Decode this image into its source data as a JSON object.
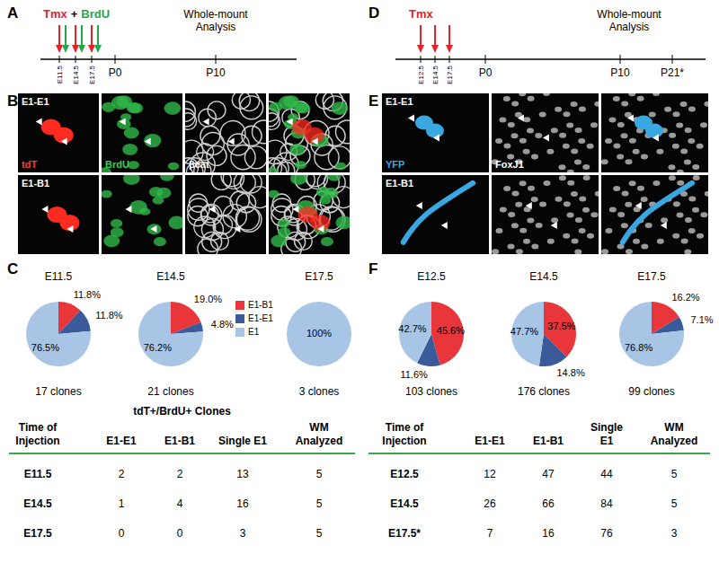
{
  "chart_data": [
    {
      "type": "pie",
      "title": "E11.5",
      "subtitle": "17 clones",
      "categories": [
        "E1-B1",
        "E1-E1",
        "E1"
      ],
      "values": [
        11.8,
        11.8,
        76.5
      ],
      "value_labels": [
        "11.8%",
        "11.8%",
        "76.5%"
      ],
      "colors": [
        "#e8363b",
        "#3b5a9a",
        "#a8c5e6"
      ],
      "data_labels": true
    },
    {
      "type": "pie",
      "title": "E14.5",
      "subtitle": "21 clones",
      "categories": [
        "E1-B1",
        "E1-E1",
        "E1"
      ],
      "values": [
        19.0,
        4.8,
        76.2
      ],
      "value_labels": [
        "19.0%",
        "4.8%",
        "76.2%"
      ],
      "colors": [
        "#e8363b",
        "#3b5a9a",
        "#a8c5e6"
      ],
      "data_labels": true,
      "legend": "right"
    },
    {
      "type": "pie",
      "title": "E17.5",
      "subtitle": "3 clones",
      "categories": [
        "E1"
      ],
      "values": [
        100
      ],
      "value_labels": [
        "100%"
      ],
      "colors": [
        "#a8c5e6"
      ],
      "data_labels": true
    },
    {
      "type": "pie",
      "title": "E12.5",
      "subtitle": "103 clones",
      "categories": [
        "E1-B1",
        "E1-E1",
        "E1"
      ],
      "values": [
        45.6,
        11.6,
        42.7
      ],
      "value_labels": [
        "45.6%",
        "11.6%",
        "42.7%"
      ],
      "colors": [
        "#e8363b",
        "#3b5a9a",
        "#a8c5e6"
      ],
      "data_labels": true
    },
    {
      "type": "pie",
      "title": "E14.5",
      "subtitle": "176 clones",
      "categories": [
        "E1-B1",
        "E1-E1",
        "E1"
      ],
      "values": [
        37.5,
        14.8,
        47.7
      ],
      "value_labels": [
        "37.5%",
        "14.8%",
        "47.7%"
      ],
      "colors": [
        "#e8363b",
        "#3b5a9a",
        "#a8c5e6"
      ],
      "data_labels": true
    },
    {
      "type": "pie",
      "title": "E17.5",
      "subtitle": "99 clones",
      "categories": [
        "E1-B1",
        "E1-E1",
        "E1"
      ],
      "values": [
        16.2,
        7.1,
        76.8
      ],
      "value_labels": [
        "16.2%",
        "7.1%",
        "76.8%"
      ],
      "colors": [
        "#e8363b",
        "#3b5a9a",
        "#a8c5e6"
      ],
      "data_labels": true
    }
  ],
  "figure": {
    "panel_labels": [
      "A",
      "B",
      "C",
      "D",
      "E",
      "F"
    ],
    "timeline_a": {
      "treatments": [
        "Tmx",
        "+",
        "BrdU"
      ],
      "injection_days": [
        "E11.5",
        "E14.5",
        "E17.5"
      ],
      "milestones": [
        "P0",
        "P10"
      ],
      "analysis": [
        "Whole-mount",
        "Analysis"
      ]
    },
    "timeline_d": {
      "treatments": [
        "Tmx"
      ],
      "injection_days": [
        "E12.5",
        "E14.5",
        "E17.5"
      ],
      "milestones": [
        "P0",
        "P10",
        "P21*"
      ],
      "analysis": [
        "Whole-mount",
        "Analysis"
      ]
    },
    "images_b": {
      "rows": [
        "E1-E1",
        "E1-B1"
      ],
      "channels": [
        "tdT",
        "BrdU",
        "βcat"
      ]
    },
    "images_e": {
      "rows": [
        "E1-E1",
        "E1-B1"
      ],
      "channels": [
        "YFP",
        "FoxJ1"
      ]
    },
    "table_c": {
      "group_header": "tdT+/BrdU+ Clones",
      "header": [
        [
          "Time of",
          "Injection"
        ],
        [
          "E1-E1"
        ],
        [
          "E1-B1"
        ],
        [
          "Single E1"
        ],
        [
          "WM",
          "Analyzed"
        ]
      ],
      "rows": [
        [
          "E11.5",
          2,
          2,
          13,
          5
        ],
        [
          "E14.5",
          1,
          4,
          16,
          5
        ],
        [
          "E17.5",
          0,
          0,
          3,
          5
        ]
      ]
    },
    "table_f": {
      "header": [
        [
          "Time of",
          "Injection"
        ],
        [
          "E1-E1"
        ],
        [
          "E1-B1"
        ],
        [
          "Single",
          "E1"
        ],
        [
          "WM",
          "Analyzed"
        ]
      ],
      "rows": [
        [
          "E12.5",
          12,
          47,
          44,
          5
        ],
        [
          "E14.5",
          26,
          66,
          84,
          5
        ],
        [
          "E17.5*",
          7,
          16,
          76,
          3
        ]
      ]
    }
  }
}
